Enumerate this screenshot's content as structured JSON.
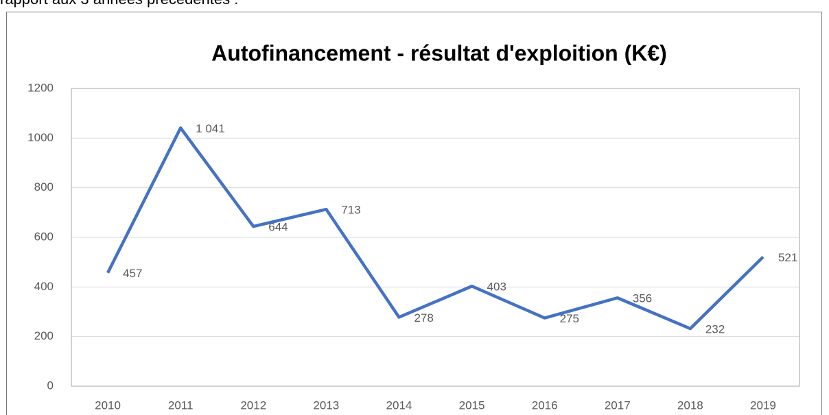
{
  "intro_text": "rapport aux 3 années précédentes :",
  "chart_data": {
    "type": "line",
    "title": "Autofinancement - résultat d'exploition (K€)",
    "categories": [
      "2010",
      "2011",
      "2012",
      "2013",
      "2014",
      "2015",
      "2016",
      "2017",
      "2018",
      "2019"
    ],
    "series": [
      {
        "name": "Autofinancement - résultat d'exploition (K€)",
        "color": "#4472c4",
        "values": [
          457,
          1041,
          644,
          713,
          278,
          403,
          275,
          356,
          232,
          521
        ],
        "value_labels": [
          "457",
          "1 041",
          "644",
          "713",
          "278",
          "403",
          "275",
          "356",
          "232",
          "521"
        ]
      }
    ],
    "ylim": [
      0,
      1200
    ],
    "yticks": [
      0,
      200,
      400,
      600,
      800,
      1000,
      1200
    ],
    "grid": true
  }
}
